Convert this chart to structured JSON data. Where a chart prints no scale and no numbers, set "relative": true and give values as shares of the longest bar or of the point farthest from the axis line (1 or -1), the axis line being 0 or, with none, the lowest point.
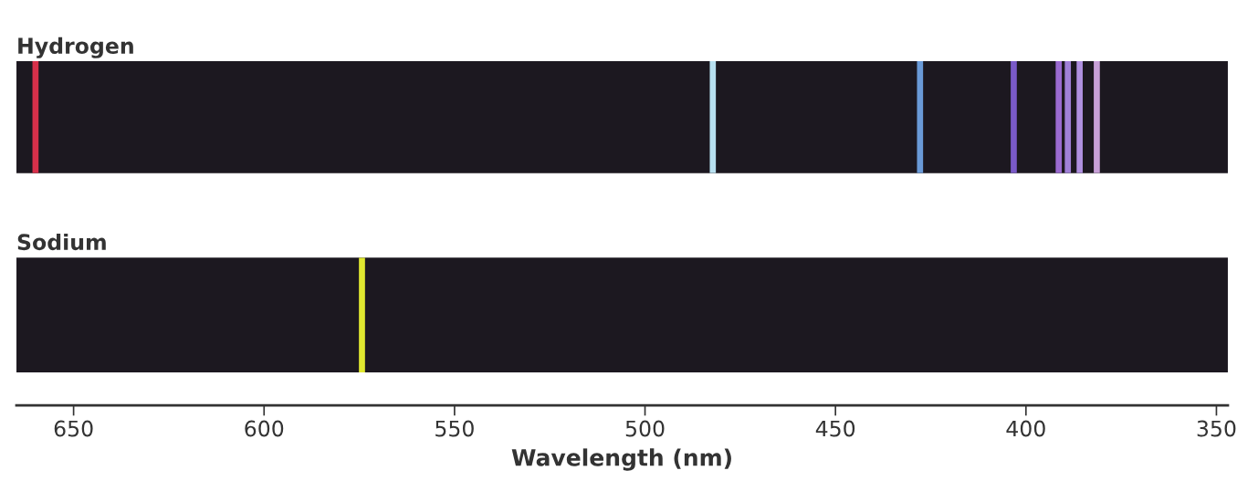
{
  "chart_data": [
    {
      "type": "bar",
      "title": "Hydrogen",
      "relative": true,
      "tick_labels": false,
      "xlim": [
        665,
        347
      ],
      "x": [
        660,
        482.2,
        427.8,
        403.2,
        391.4,
        389.0,
        385.9,
        381.4
      ],
      "values": [
        1,
        1,
        1,
        1,
        1,
        1,
        1,
        1
      ],
      "colors": [
        "#d8304a",
        "#b8e0f0",
        "#6a9ad8",
        "#7a5ac8",
        "#9a6ad0",
        "#a080d8",
        "#b090e0",
        "#c8a0d8"
      ]
    },
    {
      "type": "bar",
      "title": "Sodium",
      "relative": true,
      "tick_labels": "x",
      "xlim": [
        665,
        347
      ],
      "xlabel": "Wavelength (nm)",
      "xticks": [
        650,
        600,
        550,
        500,
        450,
        400,
        350
      ],
      "x": [
        574.3
      ],
      "values": [
        1
      ],
      "colors": [
        "#e0e830"
      ]
    }
  ]
}
